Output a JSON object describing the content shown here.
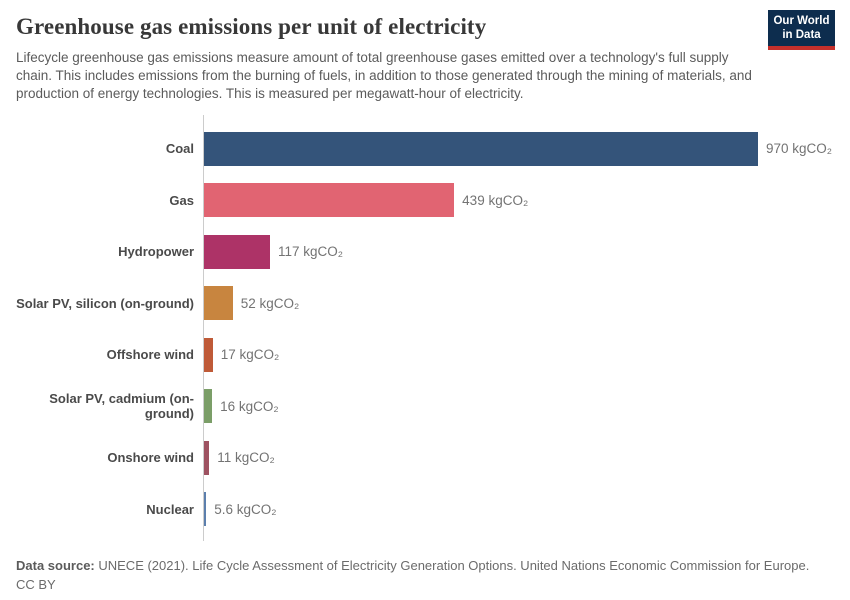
{
  "header": {
    "title": "Greenhouse gas emissions per unit of electricity",
    "subtitle": "Lifecycle greenhouse gas emissions measure amount of total greenhouse gases emitted over a technology's full supply chain. This includes emissions from the burning of fuels, in addition to those generated through the mining of materials, and production of energy technologies. This is measured per megawatt-hour of electricity.",
    "logo": {
      "line1": "Our World",
      "line2": "in Data",
      "bg_color": "#0d2d4e",
      "stripe_color": "#c5302b"
    }
  },
  "chart_data": {
    "type": "bar",
    "orientation": "horizontal",
    "title": "Greenhouse gas emissions per unit of electricity",
    "xlabel": "",
    "ylabel": "",
    "unit": "kgCO₂ per megawatt-hour",
    "xlim": [
      0,
      970
    ],
    "grid": false,
    "legend": "none",
    "categories": [
      "Coal",
      "Gas",
      "Hydropower",
      "Solar PV, silicon (on-ground)",
      "Offshore wind",
      "Solar PV, cadmium (on-ground)",
      "Onshore wind",
      "Nuclear"
    ],
    "values": [
      970,
      439,
      117,
      52,
      17,
      16,
      11,
      5.6
    ],
    "value_labels": [
      "970 kgCO₂",
      "439 kgCO₂",
      "117 kgCO₂",
      "52 kgCO₂",
      "17 kgCO₂",
      "16 kgCO₂",
      "11 kgCO₂",
      "5.6 kgCO₂"
    ],
    "bar_colors": [
      "#34547a",
      "#e16472",
      "#ad3367",
      "#c8853f",
      "#bf5a38",
      "#7b9e68",
      "#9e5261",
      "#5c7fad"
    ],
    "axis_line_color": "#cccccc"
  },
  "footer": {
    "source_label": "Data source:",
    "source_text": " UNECE (2021). Life Cycle Assessment of Electricity Generation Options. United Nations Economic Commission for Europe.",
    "license": "CC BY"
  }
}
